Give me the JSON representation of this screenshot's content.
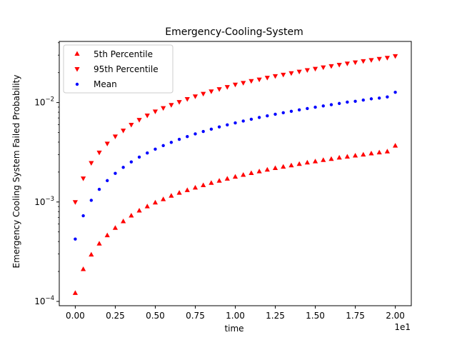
{
  "chart_data": {
    "type": "scatter",
    "title": "Emergency-Cooling-System",
    "xlabel": "time",
    "ylabel": "Emergency Cooling System Failed Probability",
    "x_offset_text": "1e1",
    "x_scale": "linear",
    "y_scale": "log",
    "xlim": [
      -0.1,
      2.1
    ],
    "ylim": [
      9.05e-05,
      0.0412
    ],
    "x_ticks": [
      "0.00",
      "0.25",
      "0.50",
      "0.75",
      "1.00",
      "1.25",
      "1.50",
      "1.75",
      "2.00"
    ],
    "x_tick_values": [
      0,
      0.25,
      0.5,
      0.75,
      1.0,
      1.25,
      1.5,
      1.75,
      2.0
    ],
    "grid": false,
    "legend_position": "upper left",
    "x": [
      0.0,
      0.05,
      0.1,
      0.15,
      0.2,
      0.25,
      0.3,
      0.35,
      0.4,
      0.45,
      0.5,
      0.55,
      0.6,
      0.65,
      0.7,
      0.75,
      0.8,
      0.85,
      0.9,
      0.95,
      1.0,
      1.05,
      1.1,
      1.15,
      1.2,
      1.25,
      1.3,
      1.35,
      1.4,
      1.45,
      1.5,
      1.55,
      1.6,
      1.65,
      1.7,
      1.75,
      1.8,
      1.85,
      1.9,
      1.95,
      2.0
    ],
    "series": [
      {
        "name": "5th Percentile",
        "marker": "triangle-up",
        "color": "#ff0000",
        "values": [
          0.000122,
          0.000212,
          0.000297,
          0.000383,
          0.000464,
          0.000551,
          0.000642,
          0.000732,
          0.000822,
          0.000906,
          0.00099,
          0.00107,
          0.00116,
          0.00124,
          0.00132,
          0.0014,
          0.00148,
          0.00156,
          0.00164,
          0.00172,
          0.0018,
          0.00188,
          0.00196,
          0.00204,
          0.00212,
          0.0022,
          0.00227,
          0.00234,
          0.00242,
          0.0025,
          0.00257,
          0.00265,
          0.00272,
          0.0028,
          0.00287,
          0.00294,
          0.00301,
          0.00309,
          0.00316,
          0.00323,
          0.0037
        ]
      },
      {
        "name": "95th Percentile",
        "marker": "triangle-down",
        "color": "#ff0000",
        "values": [
          0.000993,
          0.00172,
          0.00246,
          0.00313,
          0.00385,
          0.00454,
          0.00521,
          0.00596,
          0.00667,
          0.00738,
          0.0081,
          0.00877,
          0.00942,
          0.0101,
          0.0108,
          0.0115,
          0.0122,
          0.0129,
          0.0136,
          0.0143,
          0.0151,
          0.0157,
          0.0164,
          0.017,
          0.0177,
          0.0184,
          0.019,
          0.0197,
          0.0204,
          0.0211,
          0.0218,
          0.0225,
          0.0232,
          0.0239,
          0.0246,
          0.0253,
          0.026,
          0.0267,
          0.0274,
          0.0281,
          0.0292
        ]
      },
      {
        "name": "Mean",
        "marker": "circle",
        "color": "#0000ff",
        "values": [
          0.000424,
          0.000727,
          0.00104,
          0.00134,
          0.00164,
          0.00194,
          0.00223,
          0.00253,
          0.00283,
          0.00311,
          0.0034,
          0.00369,
          0.00398,
          0.00427,
          0.00455,
          0.00484,
          0.00512,
          0.0054,
          0.00569,
          0.00597,
          0.00624,
          0.00652,
          0.0068,
          0.00708,
          0.00735,
          0.00763,
          0.0079,
          0.00817,
          0.00844,
          0.00871,
          0.00898,
          0.00925,
          0.00952,
          0.00979,
          0.0101,
          0.0103,
          0.0106,
          0.0109,
          0.0111,
          0.0114,
          0.0127
        ]
      }
    ]
  }
}
